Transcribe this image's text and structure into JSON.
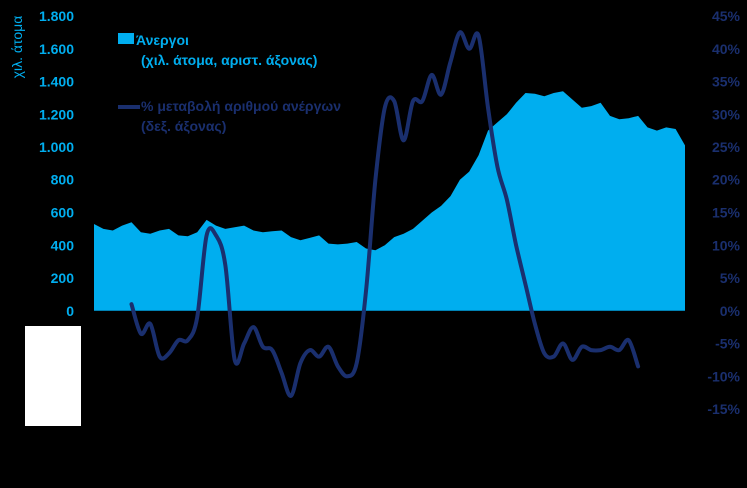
{
  "chart_data": {
    "type": "area+line",
    "ylabel_left": "χιλ. άτομα",
    "left_axis": {
      "ticks": [
        0,
        200,
        400,
        600,
        800,
        1000,
        1200,
        1400,
        1600,
        1800
      ],
      "tick_labels": [
        "0",
        "200",
        "400",
        "600",
        "800",
        "1.000",
        "1.200",
        "1.400",
        "1.600",
        "1.800"
      ],
      "ylim": [
        -600,
        1800
      ]
    },
    "right_axis": {
      "ticks": [
        -15,
        -10,
        -5,
        0,
        5,
        10,
        15,
        20,
        25,
        30,
        35,
        40,
        45
      ],
      "tick_labels": [
        "-15%",
        "-10%",
        "-5%",
        "0%",
        "5%",
        "10%",
        "15%",
        "20%",
        "25%",
        "30%",
        "35%",
        "40%",
        "45%"
      ],
      "ylim": [
        -15,
        45
      ]
    },
    "series": [
      {
        "name": "Άνεργοι",
        "name_line2": "(χιλ. άτομα, αριστ. άξονας)",
        "type": "area",
        "axis": "left",
        "color": "#00aeef",
        "values": [
          530,
          500,
          490,
          520,
          540,
          480,
          470,
          490,
          500,
          460,
          455,
          480,
          555,
          520,
          500,
          510,
          520,
          490,
          480,
          485,
          490,
          450,
          430,
          445,
          460,
          410,
          405,
          410,
          420,
          380,
          370,
          400,
          450,
          470,
          500,
          550,
          600,
          640,
          700,
          800,
          850,
          950,
          1100,
          1150,
          1200,
          1270,
          1330,
          1325,
          1310,
          1330,
          1340,
          1290,
          1240,
          1250,
          1270,
          1190,
          1170,
          1175,
          1190,
          1120,
          1100,
          1120,
          1110,
          1010
        ]
      },
      {
        "name": "% μεταβολή αριθμού ανέργων",
        "name_line2": "(δεξ. άξονας)",
        "type": "line",
        "axis": "right",
        "color": "#1a2f6e",
        "start_index": 4,
        "values": [
          1,
          -3.5,
          -2,
          -7,
          -6.5,
          -4.5,
          -4.5,
          -1,
          11.5,
          11.5,
          7,
          -7.5,
          -5,
          -2.5,
          -5.5,
          -6,
          -9.5,
          -13,
          -8,
          -6,
          -7,
          -5.5,
          -8.5,
          -10,
          -8,
          3,
          20,
          31,
          32,
          26,
          32,
          32,
          36,
          33,
          38,
          42.5,
          40,
          42,
          31,
          22,
          17,
          10,
          4,
          -2,
          -6.5,
          -7,
          -5,
          -7.5,
          -5.5,
          -6,
          -6,
          -5.5,
          -6,
          -4.5,
          -8.5
        ]
      }
    ],
    "grid": false,
    "legend": "top-left-inside"
  }
}
